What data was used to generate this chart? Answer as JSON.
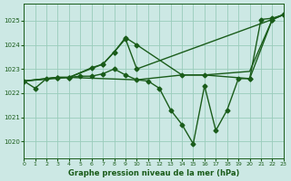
{
  "title": "Graphe pression niveau de la mer (hPa)",
  "bg_color": "#cce8e4",
  "grid_color": "#99ccbb",
  "line_color": "#1a5c1a",
  "xlim": [
    0,
    23
  ],
  "ylim": [
    1019.3,
    1025.7
  ],
  "yticks": [
    1020,
    1021,
    1022,
    1023,
    1024,
    1025
  ],
  "xticks": [
    0,
    1,
    2,
    3,
    4,
    5,
    6,
    7,
    8,
    9,
    10,
    11,
    12,
    13,
    14,
    15,
    16,
    17,
    18,
    19,
    20,
    21,
    22,
    23
  ],
  "series": [
    {
      "x": [
        0,
        1,
        2,
        3,
        4,
        5,
        6,
        7,
        8,
        9,
        10,
        11,
        12,
        13,
        14,
        15,
        16,
        17,
        18,
        19,
        20,
        21,
        22,
        23
      ],
      "y": [
        1022.5,
        1022.2,
        1022.6,
        1022.65,
        1022.65,
        1022.7,
        1022.7,
        1022.8,
        1023.0,
        1022.75,
        1022.55,
        1022.5,
        1022.2,
        1021.3,
        1020.7,
        1019.9,
        1022.3,
        1020.45,
        1021.3,
        1022.6,
        1022.6,
        1025.05,
        1025.1,
        1025.25
      ],
      "marker": "D",
      "markersize": 2.5,
      "linewidth": 1.0
    },
    {
      "x": [
        0,
        3,
        4,
        6,
        7,
        8,
        9,
        10,
        14,
        16,
        20,
        22,
        23
      ],
      "y": [
        1022.5,
        1022.65,
        1022.65,
        1023.05,
        1023.2,
        1023.7,
        1024.3,
        1024.0,
        1022.75,
        1022.75,
        1022.6,
        1025.05,
        1025.25
      ],
      "marker": "D",
      "markersize": 2.5,
      "linewidth": 1.0
    },
    {
      "x": [
        0,
        3,
        4,
        7,
        8,
        9,
        10,
        22,
        23
      ],
      "y": [
        1022.5,
        1022.65,
        1022.65,
        1023.2,
        1023.7,
        1024.25,
        1023.0,
        1025.05,
        1025.25
      ],
      "marker": "D",
      "markersize": 2.5,
      "linewidth": 1.0
    },
    {
      "x": [
        0,
        4,
        10,
        14,
        16,
        20,
        22,
        23
      ],
      "y": [
        1022.5,
        1022.65,
        1022.55,
        1022.75,
        1022.75,
        1022.9,
        1025.05,
        1025.25
      ],
      "marker": null,
      "markersize": 0,
      "linewidth": 1.0
    }
  ]
}
